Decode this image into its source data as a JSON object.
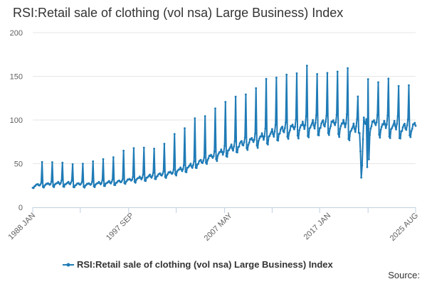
{
  "title": "RSI:Retail sale of clothing (vol nsa) Large Business) Index",
  "source_label": "Source:",
  "colors": {
    "series": "#1f7bb6",
    "grid": "#e6e6e6",
    "axis": "#c0d0e0",
    "text": "#333333",
    "tick": "#606060"
  },
  "chart_data": {
    "type": "line",
    "title": "RSI:Retail sale of clothing (vol nsa) Large Business) Index",
    "xlabel": "",
    "ylabel": "",
    "ylim": [
      0,
      200
    ],
    "y_ticks": [
      0,
      50,
      100,
      150,
      200
    ],
    "x_range": [
      "1988 JAN",
      "2025 AUG"
    ],
    "x_tick_labels": [
      "1988 JAN",
      "1997 SEP",
      "2007 MAY",
      "2017 JAN",
      "2025 AUG"
    ],
    "grid": true,
    "legend_position": "bottom",
    "series": [
      {
        "name": "RSI:Retail sale of clothing (vol nsa) Large Business) Index",
        "frequency": "monthly",
        "start": "1988 JAN",
        "annual_base": [
          26,
          27,
          28,
          28,
          27,
          27,
          28,
          29,
          30,
          32,
          34,
          36,
          38,
          40,
          44,
          48,
          53,
          59,
          64,
          69,
          74,
          78,
          82,
          86,
          90,
          93,
          95,
          96,
          97,
          98,
          97,
          92,
          100,
          98,
          96,
          95,
          93,
          95
        ],
        "december_peaks": [
          52,
          51,
          51,
          50,
          50,
          52,
          55,
          58,
          65,
          67,
          68,
          68,
          73,
          83,
          90,
          103,
          105,
          112,
          120,
          128,
          130,
          135,
          146,
          150,
          153,
          152,
          161,
          154,
          155,
          154,
          158,
          128,
          148,
          142,
          146,
          140,
          141
        ]
      }
    ]
  },
  "legend": {
    "label": "RSI:Retail sale of clothing (vol nsa) Large Business) Index"
  }
}
